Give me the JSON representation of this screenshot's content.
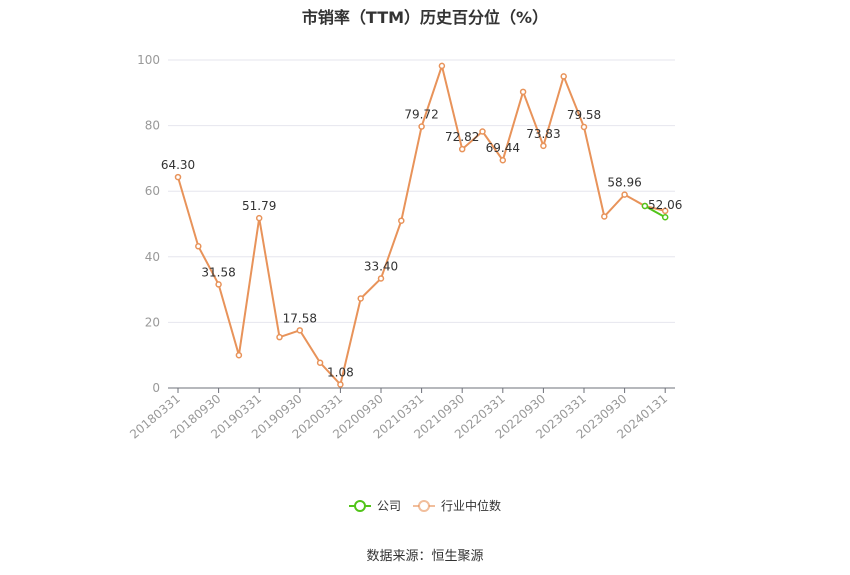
{
  "chart_data": {
    "type": "line",
    "title": "市销率（TTM）历史百分位（%）",
    "xlabel": "",
    "ylabel": "",
    "ylim": [
      0,
      100
    ],
    "yticks": [
      0,
      20,
      40,
      60,
      80,
      100
    ],
    "x": [
      "20180331",
      "20180630",
      "20180930",
      "20181231",
      "20190331",
      "20190630",
      "20190930",
      "20191231",
      "20200331",
      "20200630",
      "20200930",
      "20201231",
      "20210331",
      "20210630",
      "20210930",
      "20211231",
      "20220331",
      "20220630",
      "20220930",
      "20221231",
      "20230331",
      "20230630",
      "20230930",
      "20231231",
      "20240131"
    ],
    "xtick_labels": [
      "20180331",
      "20180930",
      "20190331",
      "20190930",
      "20200331",
      "20200930",
      "20210331",
      "20210930",
      "20220331",
      "20220930",
      "20230331",
      "20230930",
      "20240131"
    ],
    "series": [
      {
        "name": "公司",
        "color": "#52c41a",
        "x": [
          "20231231",
          "20240131"
        ],
        "values": [
          55.5,
          52.06
        ]
      },
      {
        "name": "行业中位数",
        "color": "#e8935a",
        "values": [
          64.3,
          43.2,
          31.58,
          10.0,
          51.79,
          15.5,
          17.58,
          7.7,
          1.08,
          27.3,
          33.4,
          51.0,
          79.72,
          98.2,
          72.82,
          78.2,
          69.44,
          90.3,
          73.83,
          95.0,
          79.58,
          52.3,
          58.96,
          55.5,
          54.0
        ]
      }
    ],
    "data_labels": [
      {
        "x": "20180331",
        "text": "64.30"
      },
      {
        "x": "20180930",
        "text": "31.58"
      },
      {
        "x": "20190331",
        "text": "51.79"
      },
      {
        "x": "20190930",
        "text": "17.58"
      },
      {
        "x": "20200331",
        "text": "1.08"
      },
      {
        "x": "20200930",
        "text": "33.40"
      },
      {
        "x": "20210331",
        "text": "79.72"
      },
      {
        "x": "20210930",
        "text": "72.82"
      },
      {
        "x": "20220331",
        "text": "69.44"
      },
      {
        "x": "20220930",
        "text": "73.83"
      },
      {
        "x": "20230331",
        "text": "79.58"
      },
      {
        "x": "20230930",
        "text": "58.96"
      },
      {
        "x": "20240131",
        "text": "52.06"
      }
    ],
    "grid": true,
    "legend_position": "bottom-center",
    "source": "数据来源：恒生聚源"
  }
}
